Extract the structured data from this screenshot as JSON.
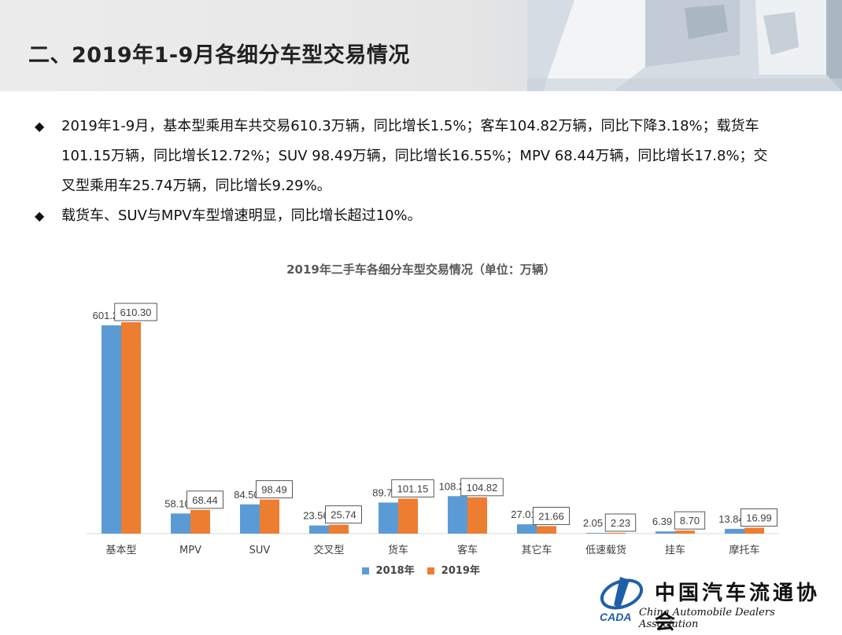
{
  "header": {
    "title": "二、2019年1-9月各细分车型交易情况"
  },
  "bullets": [
    "2019年1-9月，基本型乘用车共交易610.3万辆，同比增长1.5%；客车104.82万辆，同比下降3.18%；载货车101.15万辆，同比增长12.72%；SUV 98.49万辆，同比增长16.55%；MPV 68.44万辆，同比增长17.8%；交叉型乘用车25.74万辆，同比增长9.29%。",
    "载货车、SUV与MPV车型增速明显，同比增长超过10%。"
  ],
  "chart_data": {
    "type": "bar",
    "title": "2019年二手车各细分车型交易情况（单位：万辆）",
    "categories": [
      "基本型",
      "MPV",
      "SUV",
      "交叉型",
      "货车",
      "客车",
      "其它车",
      "低速载货",
      "挂车",
      "摩托车"
    ],
    "series": [
      {
        "name": "2018年",
        "color": "#5b9bd5",
        "values": [
          601.28,
          58.1,
          84.5,
          23.56,
          89.74,
          108.26,
          27.01,
          2.05,
          6.39,
          13.84
        ]
      },
      {
        "name": "2019年",
        "color": "#ed7d31",
        "values": [
          610.3,
          68.44,
          98.49,
          25.74,
          101.15,
          104.82,
          21.66,
          2.23,
          8.7,
          16.99
        ]
      }
    ],
    "ylim": [
      0,
      610.3
    ],
    "legend_position": "bottom",
    "grid": false
  },
  "logo": {
    "cn": "中国汽车流通协会",
    "en": "China Automobile Dealers Association",
    "mark": "CADA"
  }
}
